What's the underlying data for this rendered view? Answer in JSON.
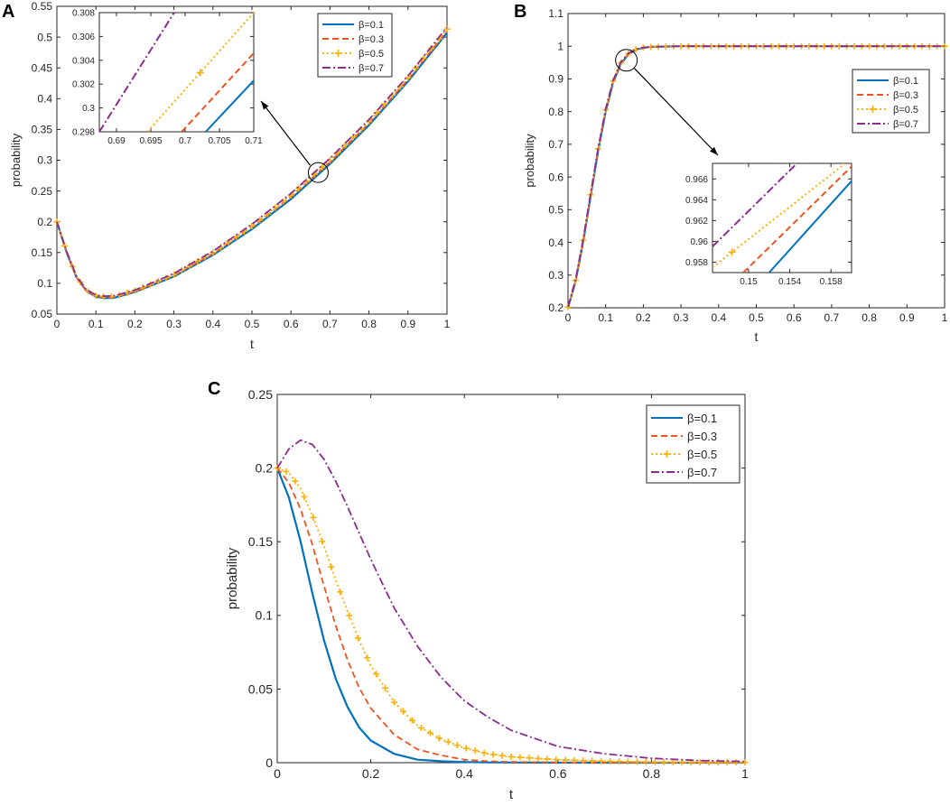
{
  "panels": [
    "A",
    "B",
    "C"
  ],
  "colors": {
    "b01": "#0072BD",
    "b03": "#F0531E",
    "b05": "#F9B10F",
    "b07": "#8B2C8F"
  },
  "chart_data": [
    {
      "id": "A",
      "type": "line",
      "xlabel": "t",
      "ylabel": "probability",
      "xlim": [
        0,
        1
      ],
      "ylim": [
        0.05,
        0.55
      ],
      "xticks": [
        "0",
        "0.1",
        "0.2",
        "0.3",
        "0.4",
        "0.5",
        "0.6",
        "0.7",
        "0.8",
        "0.9",
        "1"
      ],
      "yticks": [
        "0.05",
        "0.1",
        "0.15",
        "0.2",
        "0.25",
        "0.3",
        "0.35",
        "0.4",
        "0.45",
        "0.5",
        "0.55"
      ],
      "legend": {
        "position": "top-right",
        "entries": [
          "β=0.1",
          "β=0.3",
          "β=0.5",
          "β=0.7"
        ]
      },
      "x": [
        0,
        0.025,
        0.05,
        0.075,
        0.1,
        0.125,
        0.15,
        0.2,
        0.3,
        0.4,
        0.5,
        0.6,
        0.7,
        0.8,
        0.9,
        1.0
      ],
      "series": [
        {
          "name": "β=0.1",
          "style": "solid",
          "values": [
            0.2,
            0.15,
            0.11,
            0.088,
            0.078,
            0.076,
            0.077,
            0.086,
            0.111,
            0.146,
            0.188,
            0.237,
            0.294,
            0.357,
            0.428,
            0.507
          ]
        },
        {
          "name": "β=0.3",
          "style": "dashed",
          "values": [
            0.2,
            0.15,
            0.11,
            0.088,
            0.079,
            0.077,
            0.078,
            0.087,
            0.113,
            0.148,
            0.191,
            0.24,
            0.297,
            0.36,
            0.431,
            0.51
          ]
        },
        {
          "name": "β=0.5",
          "style": "dotted-plus",
          "values": [
            0.2,
            0.151,
            0.111,
            0.089,
            0.08,
            0.078,
            0.079,
            0.088,
            0.114,
            0.15,
            0.193,
            0.243,
            0.3,
            0.363,
            0.434,
            0.513
          ]
        },
        {
          "name": "β=0.7",
          "style": "dashdot",
          "values": [
            0.2,
            0.152,
            0.112,
            0.09,
            0.081,
            0.079,
            0.08,
            0.089,
            0.116,
            0.152,
            0.196,
            0.246,
            0.303,
            0.366,
            0.437,
            0.516
          ]
        }
      ],
      "inset": {
        "xlim": [
          0.6875,
          0.71
        ],
        "ylim": [
          0.298,
          0.308
        ],
        "xticks": [
          "0.69",
          "0.695",
          "0.7",
          "0.705",
          "0.71"
        ],
        "yticks": [
          "0.298",
          "0.3",
          "0.302",
          "0.304",
          "0.306",
          "0.308"
        ],
        "lines": [
          {
            "name": "β=0.1",
            "style": "solid",
            "x": [
              0.703,
              0.71
            ],
            "y": [
              0.298,
              0.3023
            ]
          },
          {
            "name": "β=0.3",
            "style": "dashed",
            "x": [
              0.6995,
              0.71
            ],
            "y": [
              0.298,
              0.3046
            ]
          },
          {
            "name": "β=0.5",
            "style": "dotted-plus",
            "x": [
              0.6945,
              0.71
            ],
            "y": [
              0.298,
              0.308
            ],
            "marker_x": [
              0.7022
            ]
          },
          {
            "name": "β=0.7",
            "style": "dashdot",
            "x": [
              0.6875,
              0.6984
            ],
            "y": [
              0.298,
              0.308
            ]
          }
        ]
      }
    },
    {
      "id": "B",
      "type": "line",
      "xlabel": "t",
      "ylabel": "probability",
      "xlim": [
        0,
        1
      ],
      "ylim": [
        0.2,
        1.1
      ],
      "xticks": [
        "0",
        "0.1",
        "0.2",
        "0.3",
        "0.4",
        "0.5",
        "0.6",
        "0.7",
        "0.8",
        "0.9",
        "1"
      ],
      "yticks": [
        "0.2",
        "0.3",
        "0.4",
        "0.5",
        "0.6",
        "0.7",
        "0.8",
        "0.9",
        "1",
        "1.1"
      ],
      "legend": {
        "position": "top-right",
        "entries": [
          "β=0.1",
          "β=0.3",
          "β=0.5",
          "β=0.7"
        ]
      },
      "x": [
        0,
        0.02,
        0.04,
        0.06,
        0.08,
        0.1,
        0.12,
        0.14,
        0.16,
        0.18,
        0.2,
        0.22,
        0.25,
        0.3,
        0.4,
        0.6,
        0.8,
        1.0
      ],
      "series": [
        {
          "name": "β=0.1",
          "style": "solid",
          "values": [
            0.2,
            0.28,
            0.4,
            0.54,
            0.68,
            0.8,
            0.89,
            0.945,
            0.975,
            0.989,
            0.995,
            0.998,
            0.999,
            1.0,
            1.0,
            1.0,
            1.0,
            1.0
          ]
        },
        {
          "name": "β=0.3",
          "style": "dashed",
          "values": [
            0.201,
            0.282,
            0.403,
            0.543,
            0.683,
            0.803,
            0.892,
            0.947,
            0.976,
            0.99,
            0.996,
            0.998,
            0.999,
            1.0,
            1.0,
            1.0,
            1.0,
            1.0
          ]
        },
        {
          "name": "β=0.5",
          "style": "dotted-plus",
          "values": [
            0.202,
            0.284,
            0.406,
            0.546,
            0.686,
            0.806,
            0.894,
            0.949,
            0.977,
            0.99,
            0.996,
            0.998,
            0.999,
            1.0,
            1.0,
            1.0,
            1.0,
            1.0
          ]
        },
        {
          "name": "β=0.7",
          "style": "dashdot",
          "values": [
            0.203,
            0.286,
            0.409,
            0.549,
            0.689,
            0.809,
            0.896,
            0.951,
            0.978,
            0.991,
            0.996,
            0.998,
            0.999,
            1.0,
            1.0,
            1.0,
            1.0,
            1.0
          ]
        }
      ],
      "inset": {
        "xlim": [
          0.1465,
          0.16
        ],
        "ylim": [
          0.957,
          0.9675
        ],
        "xticks": [
          "0.15",
          "0.154",
          "0.158"
        ],
        "yticks": [
          "0.958",
          "0.96",
          "0.962",
          "0.964",
          "0.966"
        ],
        "lines": [
          {
            "name": "β=0.1",
            "style": "solid",
            "x": [
              0.152,
              0.16
            ],
            "y": [
              0.957,
              0.9658
            ]
          },
          {
            "name": "β=0.3",
            "style": "dashed",
            "x": [
              0.1495,
              0.16
            ],
            "y": [
              0.957,
              0.9672
            ]
          },
          {
            "name": "β=0.5",
            "style": "dotted-plus",
            "x": [
              0.1465,
              0.1594
            ],
            "y": [
              0.9575,
              0.9675
            ],
            "marker_x": [
              0.1484
            ]
          },
          {
            "name": "β=0.7",
            "style": "dashdot",
            "x": [
              0.1465,
              0.1547
            ],
            "y": [
              0.9595,
              0.9675
            ]
          }
        ]
      }
    },
    {
      "id": "C",
      "type": "line",
      "xlabel": "t",
      "ylabel": "probability",
      "xlim": [
        0,
        1
      ],
      "ylim": [
        0,
        0.25
      ],
      "xticks": [
        "0",
        "0.2",
        "0.4",
        "0.6",
        "0.8",
        "1"
      ],
      "yticks": [
        "0",
        "0.05",
        "0.1",
        "0.15",
        "0.2",
        "0.25"
      ],
      "legend": {
        "position": "top-right",
        "entries": [
          "β=0.1",
          "β=0.3",
          "β=0.5",
          "β=0.7"
        ]
      },
      "x": [
        0,
        0.025,
        0.05,
        0.075,
        0.1,
        0.125,
        0.15,
        0.175,
        0.2,
        0.25,
        0.3,
        0.35,
        0.4,
        0.45,
        0.5,
        0.6,
        0.7,
        0.8,
        0.9,
        1.0
      ],
      "series": [
        {
          "name": "β=0.1",
          "style": "solid",
          "values": [
            0.2,
            0.18,
            0.15,
            0.115,
            0.083,
            0.057,
            0.038,
            0.024,
            0.015,
            0.006,
            0.002,
            0.001,
            0.0004,
            0.0002,
            0.0001,
            0,
            0,
            0,
            0,
            0
          ]
        },
        {
          "name": "β=0.3",
          "style": "dashed",
          "values": [
            0.2,
            0.19,
            0.172,
            0.148,
            0.12,
            0.093,
            0.07,
            0.051,
            0.037,
            0.019,
            0.009,
            0.005,
            0.002,
            0.001,
            0.0005,
            0.0002,
            0.0001,
            0,
            0,
            0
          ]
        },
        {
          "name": "β=0.5",
          "style": "dotted-plus",
          "values": [
            0.2,
            0.197,
            0.186,
            0.168,
            0.147,
            0.124,
            0.103,
            0.083,
            0.066,
            0.041,
            0.025,
            0.016,
            0.01,
            0.006,
            0.004,
            0.002,
            0.001,
            0.0005,
            0.0003,
            0.0002
          ]
        },
        {
          "name": "β=0.7",
          "style": "dashdot",
          "values": [
            0.2,
            0.213,
            0.219,
            0.216,
            0.206,
            0.191,
            0.174,
            0.156,
            0.138,
            0.105,
            0.079,
            0.058,
            0.042,
            0.031,
            0.022,
            0.011,
            0.006,
            0.003,
            0.0015,
            0.0008
          ]
        }
      ]
    }
  ]
}
